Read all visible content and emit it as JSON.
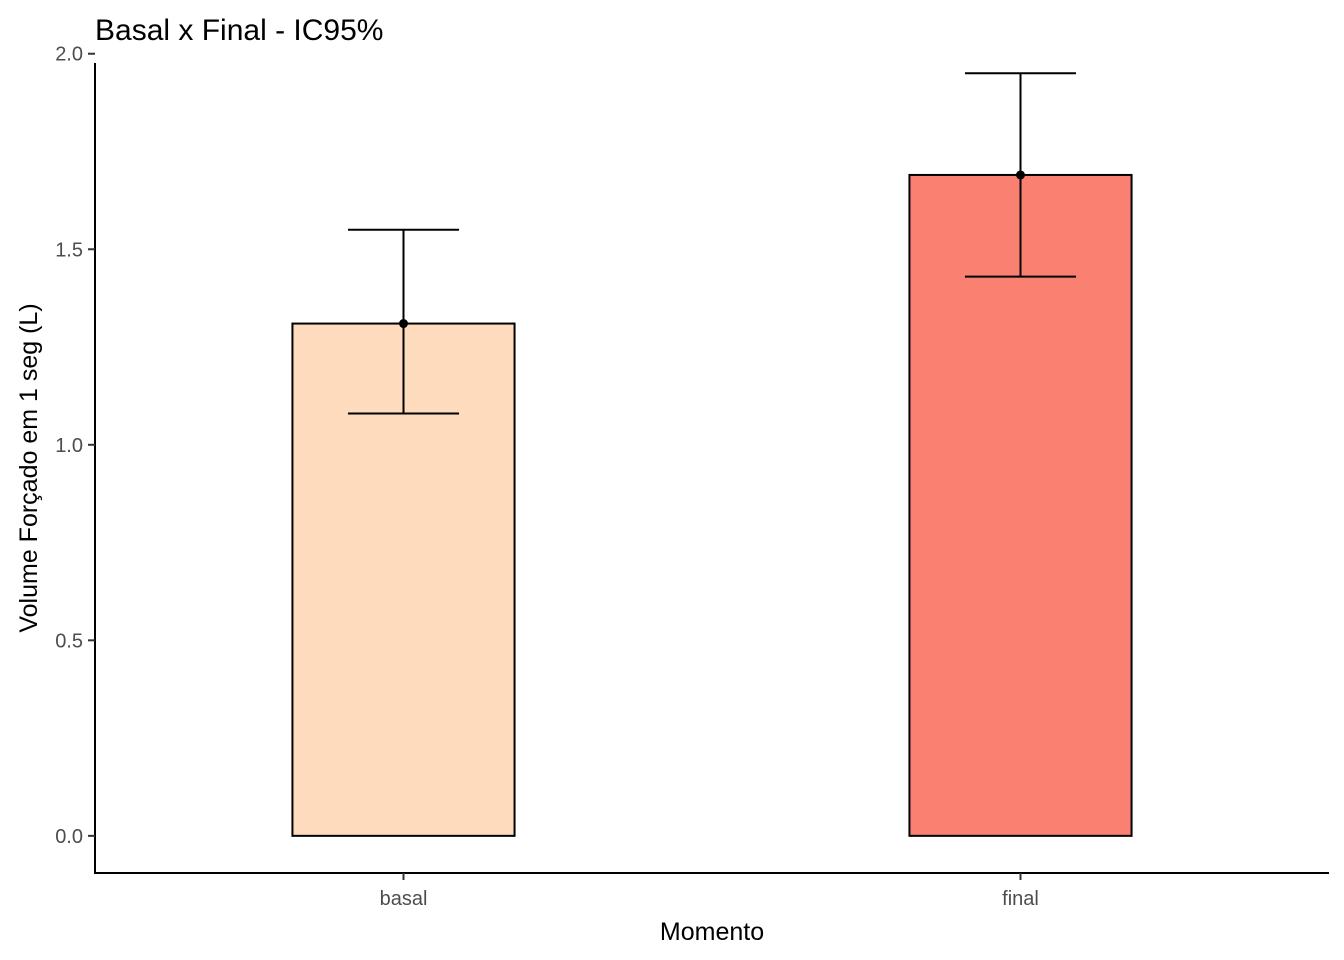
{
  "chart_data": {
    "type": "bar",
    "title": "Basal x Final - IC95%",
    "xlabel": "Momento",
    "ylabel": "Volume Forçado em 1 seg (L)",
    "categories": [
      "basal",
      "final"
    ],
    "values": [
      1.31,
      1.69
    ],
    "ci_lower": [
      1.08,
      1.43
    ],
    "ci_upper": [
      1.55,
      1.95
    ],
    "bar_colors": [
      "#FDDBBC",
      "#FA8072"
    ],
    "ylim": [
      -0.095,
      2.03
    ],
    "yticks": [
      0.0,
      0.5,
      1.0,
      1.5,
      2.0
    ],
    "ytick_labels": [
      "0.0",
      "0.5",
      "1.0",
      "1.5",
      "2.0"
    ],
    "grid": false,
    "legend": "none"
  }
}
